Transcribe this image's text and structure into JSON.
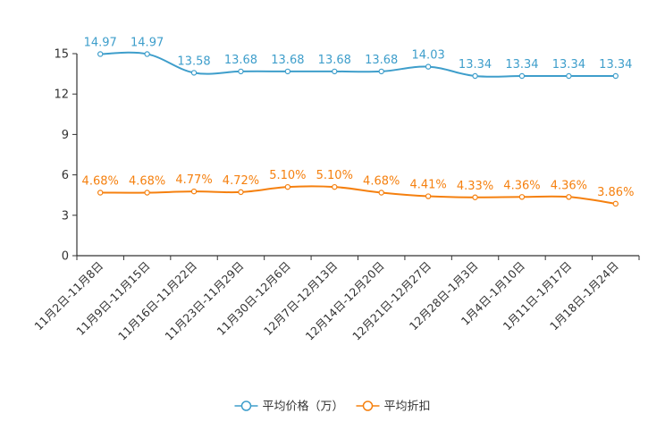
{
  "chart_data": {
    "type": "line",
    "title": "",
    "xlabel": "",
    "ylabel": "",
    "ylim": [
      0,
      15
    ],
    "yticks": [
      0,
      3,
      6,
      9,
      12,
      15
    ],
    "grid": false,
    "legend_position": "bottom-center",
    "categories": [
      "11月2日-11月8日",
      "11月9日-11月15日",
      "11月16日-11月22日",
      "11月23日-11月29日",
      "11月30日-12月6日",
      "12月7日-12月13日",
      "12月14日-12月20日",
      "12月21日-12月27日",
      "12月28日-1月3日",
      "1月4日-1月10日",
      "1月11日-1月17日",
      "1月18日-1月24日"
    ],
    "series": [
      {
        "name": "平均价格（万）",
        "color": "#3e9ecb",
        "values": [
          14.97,
          14.97,
          13.58,
          13.68,
          13.68,
          13.68,
          13.68,
          14.03,
          13.34,
          13.34,
          13.34,
          13.34
        ],
        "labels": [
          "14.97",
          "14.97",
          "13.58",
          "13.68",
          "13.68",
          "13.68",
          "13.68",
          "14.03",
          "13.34",
          "13.34",
          "13.34",
          "13.34"
        ]
      },
      {
        "name": "平均折扣",
        "color": "#f5800f",
        "values": [
          4.68,
          4.68,
          4.77,
          4.72,
          5.1,
          5.1,
          4.68,
          4.41,
          4.33,
          4.36,
          4.36,
          3.86
        ],
        "labels": [
          "4.68%",
          "4.68%",
          "4.77%",
          "4.72%",
          "5.10%",
          "5.10%",
          "4.68%",
          "4.41%",
          "4.33%",
          "4.36%",
          "4.36%",
          "3.86%"
        ]
      }
    ]
  }
}
